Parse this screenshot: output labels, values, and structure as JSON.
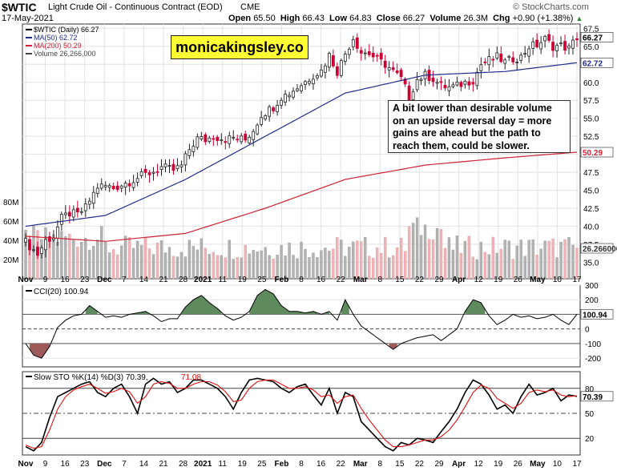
{
  "header": {
    "symbol": "$WTIC",
    "name": "Light Crude Oil - Continuous Contract (EOD)",
    "exchange": "CME",
    "date": "17-May-2021",
    "open_label": "Open",
    "open": "65.50",
    "high_label": "High",
    "high": "66.43",
    "low_label": "Low",
    "low": "64.83",
    "close_label": "Close",
    "close": "66.27",
    "volume_label": "Volume",
    "volume": "26.3M",
    "chg_label": "Chg",
    "chg": "+0.90 (+1.38%)",
    "copyright": "© StockCharts.com",
    "up_arrow": "▲"
  },
  "legend": {
    "price": "$WTIC (Daily) 66.27",
    "ma50": "MA(50) 62.72",
    "ma200": "MA(200) 50.29",
    "volume": "Volume 26,266,000"
  },
  "watermark": "monicakingsley.co",
  "annotation": [
    "A bit lower than desirable volume",
    "on an upside reversal day = more",
    "gains are ahead but the path to",
    "reach them, could be slower."
  ],
  "price_badges": {
    "close": "66.27",
    "ma50": "62.72",
    "ma200": "50.29",
    "volume": "26.266000"
  },
  "cci_label": "CCI(20) 100.94",
  "cci_badge": "100.94",
  "sto_label": "Slow STO %K(14) %D(3) 70.39,",
  "sto_label_d": "71.08",
  "sto_badge": "70.39",
  "colors": {
    "up": "#222222",
    "down": "#cc0033",
    "ma50": "#1f2d8a",
    "ma200": "#cc2233",
    "vol_up": "#b3b3b3",
    "vol_down": "#f0b4b8",
    "cci_fill_pos": "#5e8a5e",
    "cci_fill_neg": "#9e5a5a",
    "sto_k": "#000000",
    "sto_d": "#dd1111"
  },
  "chart_data": [
    {
      "type": "candlestick",
      "title": "$WTIC Light Crude Oil - Continuous Contract (EOD)",
      "y_axis_ticks": [
        35.0,
        37.5,
        40.0,
        42.5,
        45.0,
        47.5,
        50.0,
        52.5,
        55.0,
        57.5,
        60.0,
        62.5,
        65.0,
        67.5
      ],
      "ylim": [
        32.7,
        68.1
      ],
      "x_tick_labels": [
        "Nov",
        "9",
        "16",
        "23",
        "Dec",
        "7",
        "14",
        "21",
        "28",
        "2021",
        "11",
        "19",
        "25",
        "Feb",
        "8",
        "16",
        "22",
        "Mar",
        "8",
        "15",
        "22",
        "29",
        "Apr",
        "12",
        "19",
        "26",
        "May",
        "10",
        "17"
      ],
      "close_points": [
        [
          0,
          37.8
        ],
        [
          3,
          36.1
        ],
        [
          5,
          38.0
        ],
        [
          7,
          38.6
        ],
        [
          9,
          41.1
        ],
        [
          11,
          41.8
        ],
        [
          13,
          41.6
        ],
        [
          15,
          42.6
        ],
        [
          18,
          45.5
        ],
        [
          20,
          45.6
        ],
        [
          22,
          45.3
        ],
        [
          24,
          45.8
        ],
        [
          26,
          46.2
        ],
        [
          29,
          47.0
        ],
        [
          32,
          47.6
        ],
        [
          34,
          48.2
        ],
        [
          37,
          47.8
        ],
        [
          39,
          48.4
        ],
        [
          41,
          50.7
        ],
        [
          43,
          52.2
        ],
        [
          45,
          52.0
        ],
        [
          47,
          52.5
        ],
        [
          50,
          52.1
        ],
        [
          52,
          52.3
        ],
        [
          55,
          52.0
        ],
        [
          57,
          53.4
        ],
        [
          59,
          55.5
        ],
        [
          62,
          56.6
        ],
        [
          64,
          58.0
        ],
        [
          66,
          58.5
        ],
        [
          68,
          59.3
        ],
        [
          70,
          60.1
        ],
        [
          72,
          61.0
        ],
        [
          74,
          61.6
        ],
        [
          76,
          63.8
        ],
        [
          78,
          61.5
        ],
        [
          80,
          64.0
        ],
        [
          82,
          66.2
        ],
        [
          84,
          64.2
        ],
        [
          86,
          64.0
        ],
        [
          88,
          63.2
        ],
        [
          90,
          62.5
        ],
        [
          92,
          61.5
        ],
        [
          94,
          60.5
        ],
        [
          96,
          58.0
        ],
        [
          98,
          60.4
        ],
        [
          100,
          61.0
        ],
        [
          102,
          60.5
        ],
        [
          104,
          59.5
        ],
        [
          106,
          59.3
        ],
        [
          108,
          59.5
        ],
        [
          110,
          60.0
        ],
        [
          112,
          60.3
        ],
        [
          114,
          62.5
        ],
        [
          116,
          63.1
        ],
        [
          118,
          63.5
        ],
        [
          120,
          62.8
        ],
        [
          122,
          63.3
        ],
        [
          124,
          63.5
        ],
        [
          126,
          65.0
        ],
        [
          128,
          65.2
        ],
        [
          130,
          66.0
        ],
        [
          132,
          65.0
        ],
        [
          134,
          65.1
        ],
        [
          136,
          64.7
        ],
        [
          138,
          66.27
        ]
      ],
      "ma50_points": [
        [
          0,
          40.0
        ],
        [
          20,
          41.5
        ],
        [
          40,
          46.5
        ],
        [
          60,
          52.5
        ],
        [
          80,
          58.5
        ],
        [
          100,
          61.0
        ],
        [
          120,
          61.5
        ],
        [
          138,
          62.72
        ]
      ],
      "ma200_points": [
        [
          0,
          38.6
        ],
        [
          20,
          37.9
        ],
        [
          40,
          39.0
        ],
        [
          60,
          42.5
        ],
        [
          80,
          46.5
        ],
        [
          100,
          48.5
        ],
        [
          120,
          49.5
        ],
        [
          138,
          50.29
        ]
      ]
    },
    {
      "type": "bar",
      "title": "Volume",
      "y_axis_ticks": [
        "20M",
        "40M",
        "60M",
        "80M"
      ],
      "ylim": [
        0,
        90
      ],
      "last_value": "26,266,000"
    },
    {
      "type": "line",
      "title": "CCI(20)",
      "y_axis_ticks": [
        -200,
        -100,
        0,
        100,
        200,
        300
      ],
      "ylim": [
        -260,
        300
      ],
      "points": [
        [
          0,
          -100
        ],
        [
          2,
          -180
        ],
        [
          4,
          -200
        ],
        [
          6,
          -120
        ],
        [
          8,
          10
        ],
        [
          10,
          60
        ],
        [
          12,
          90
        ],
        [
          14,
          100
        ],
        [
          16,
          160
        ],
        [
          18,
          120
        ],
        [
          20,
          80
        ],
        [
          22,
          90
        ],
        [
          24,
          80
        ],
        [
          26,
          100
        ],
        [
          28,
          110
        ],
        [
          30,
          120
        ],
        [
          32,
          90
        ],
        [
          34,
          50
        ],
        [
          36,
          70
        ],
        [
          38,
          70
        ],
        [
          40,
          150
        ],
        [
          42,
          200
        ],
        [
          44,
          230
        ],
        [
          46,
          180
        ],
        [
          48,
          140
        ],
        [
          50,
          90
        ],
        [
          52,
          60
        ],
        [
          54,
          80
        ],
        [
          56,
          120
        ],
        [
          58,
          230
        ],
        [
          60,
          270
        ],
        [
          62,
          240
        ],
        [
          64,
          160
        ],
        [
          66,
          120
        ],
        [
          68,
          120
        ],
        [
          70,
          110
        ],
        [
          72,
          120
        ],
        [
          74,
          100
        ],
        [
          76,
          120
        ],
        [
          78,
          60
        ],
        [
          80,
          200
        ],
        [
          82,
          100
        ],
        [
          84,
          20
        ],
        [
          86,
          -20
        ],
        [
          88,
          -60
        ],
        [
          90,
          -100
        ],
        [
          92,
          -140
        ],
        [
          94,
          -100
        ],
        [
          96,
          -80
        ],
        [
          98,
          -60
        ],
        [
          100,
          -50
        ],
        [
          102,
          -40
        ],
        [
          104,
          -80
        ],
        [
          106,
          -40
        ],
        [
          108,
          0
        ],
        [
          110,
          120
        ],
        [
          112,
          200
        ],
        [
          114,
          180
        ],
        [
          116,
          90
        ],
        [
          118,
          30
        ],
        [
          120,
          60
        ],
        [
          122,
          100
        ],
        [
          124,
          80
        ],
        [
          126,
          90
        ],
        [
          128,
          70
        ],
        [
          130,
          80
        ],
        [
          132,
          100
        ],
        [
          134,
          60
        ],
        [
          136,
          30
        ],
        [
          138,
          100.94
        ]
      ]
    },
    {
      "type": "line",
      "title": "Slow STO %K(14) %D(3)",
      "y_axis_ticks": [
        20,
        50,
        80
      ],
      "ylim": [
        0,
        100
      ],
      "series": [
        {
          "name": "%K",
          "values": [
            [
              0,
              10
            ],
            [
              2,
              5
            ],
            [
              4,
              15
            ],
            [
              6,
              45
            ],
            [
              8,
              70
            ],
            [
              10,
              75
            ],
            [
              12,
              80
            ],
            [
              14,
              85
            ],
            [
              16,
              88
            ],
            [
              18,
              75
            ],
            [
              20,
              70
            ],
            [
              22,
              80
            ],
            [
              24,
              85
            ],
            [
              26,
              70
            ],
            [
              28,
              50
            ],
            [
              30,
              85
            ],
            [
              32,
              92
            ],
            [
              34,
              85
            ],
            [
              36,
              88
            ],
            [
              38,
              75
            ],
            [
              40,
              80
            ],
            [
              42,
              90
            ],
            [
              44,
              90
            ],
            [
              46,
              85
            ],
            [
              48,
              80
            ],
            [
              50,
              70
            ],
            [
              52,
              55
            ],
            [
              54,
              75
            ],
            [
              56,
              90
            ],
            [
              58,
              92
            ],
            [
              60,
              90
            ],
            [
              62,
              88
            ],
            [
              64,
              80
            ],
            [
              66,
              75
            ],
            [
              68,
              82
            ],
            [
              70,
              85
            ],
            [
              72,
              72
            ],
            [
              74,
              60
            ],
            [
              76,
              80
            ],
            [
              78,
              50
            ],
            [
              80,
              75
            ],
            [
              82,
              70
            ],
            [
              84,
              40
            ],
            [
              86,
              30
            ],
            [
              88,
              20
            ],
            [
              90,
              10
            ],
            [
              92,
              5
            ],
            [
              94,
              15
            ],
            [
              96,
              12
            ],
            [
              98,
              20
            ],
            [
              100,
              18
            ],
            [
              102,
              15
            ],
            [
              104,
              28
            ],
            [
              106,
              40
            ],
            [
              108,
              55
            ],
            [
              110,
              75
            ],
            [
              112,
              90
            ],
            [
              114,
              85
            ],
            [
              116,
              72
            ],
            [
              118,
              55
            ],
            [
              120,
              60
            ],
            [
              122,
              50
            ],
            [
              124,
              70
            ],
            [
              126,
              85
            ],
            [
              128,
              72
            ],
            [
              130,
              75
            ],
            [
              132,
              80
            ],
            [
              134,
              65
            ],
            [
              136,
              72
            ],
            [
              138,
              70.39
            ]
          ]
        },
        {
          "name": "%D",
          "values": [
            [
              0,
              12
            ],
            [
              2,
              8
            ],
            [
              4,
              10
            ],
            [
              6,
              30
            ],
            [
              8,
              55
            ],
            [
              10,
              70
            ],
            [
              12,
              78
            ],
            [
              14,
              82
            ],
            [
              16,
              85
            ],
            [
              18,
              80
            ],
            [
              20,
              74
            ],
            [
              22,
              76
            ],
            [
              24,
              80
            ],
            [
              26,
              76
            ],
            [
              28,
              62
            ],
            [
              30,
              70
            ],
            [
              32,
              85
            ],
            [
              34,
              88
            ],
            [
              36,
              86
            ],
            [
              38,
              80
            ],
            [
              40,
              80
            ],
            [
              42,
              85
            ],
            [
              44,
              88
            ],
            [
              46,
              88
            ],
            [
              48,
              84
            ],
            [
              50,
              76
            ],
            [
              52,
              64
            ],
            [
              54,
              66
            ],
            [
              56,
              80
            ],
            [
              58,
              88
            ],
            [
              60,
              90
            ],
            [
              62,
              90
            ],
            [
              64,
              85
            ],
            [
              66,
              80
            ],
            [
              68,
              80
            ],
            [
              70,
              82
            ],
            [
              72,
              78
            ],
            [
              74,
              70
            ],
            [
              76,
              72
            ],
            [
              78,
              62
            ],
            [
              80,
              70
            ],
            [
              82,
              72
            ],
            [
              84,
              56
            ],
            [
              86,
              42
            ],
            [
              88,
              30
            ],
            [
              90,
              18
            ],
            [
              92,
              10
            ],
            [
              94,
              10
            ],
            [
              96,
              12
            ],
            [
              98,
              15
            ],
            [
              100,
              18
            ],
            [
              102,
              18
            ],
            [
              104,
              22
            ],
            [
              106,
              30
            ],
            [
              108,
              42
            ],
            [
              110,
              58
            ],
            [
              112,
              75
            ],
            [
              114,
              84
            ],
            [
              116,
              80
            ],
            [
              118,
              68
            ],
            [
              120,
              62
            ],
            [
              122,
              56
            ],
            [
              124,
              62
            ],
            [
              126,
              75
            ],
            [
              128,
              78
            ],
            [
              130,
              76
            ],
            [
              132,
              78
            ],
            [
              134,
              72
            ],
            [
              136,
              70
            ],
            [
              138,
              71.08
            ]
          ]
        }
      ]
    }
  ]
}
